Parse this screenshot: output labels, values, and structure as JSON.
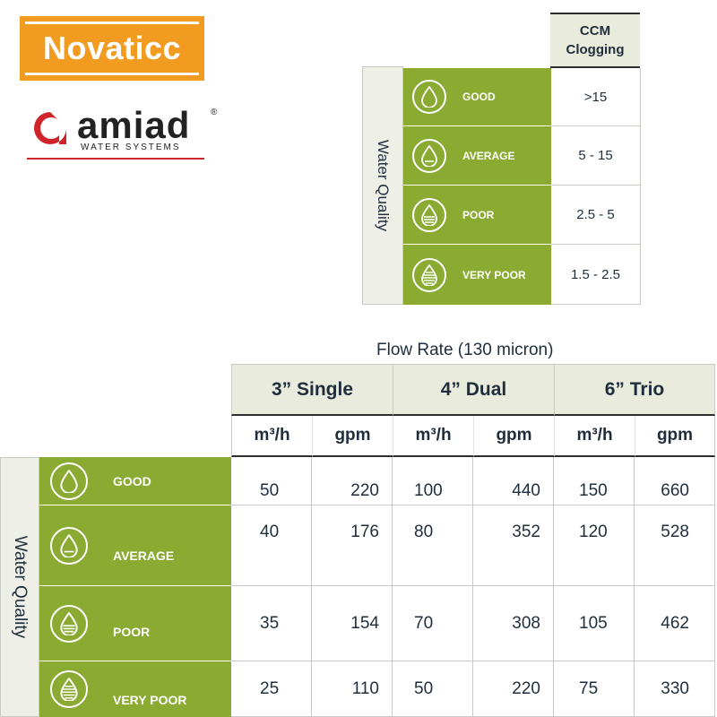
{
  "logos": {
    "novaticc": "Novaticc",
    "amiad": {
      "word": "amiad",
      "sub": "WATER SYSTEMS",
      "reg": "®"
    }
  },
  "ccm_table": {
    "side_label": "Water Quality",
    "header_line1": "CCM",
    "header_line2": "Clogging",
    "rows": [
      {
        "quality": "GOOD",
        "icon": "water-drop-icon",
        "value": ">15"
      },
      {
        "quality": "AVERAGE",
        "icon": "water-drop-icon",
        "value": "5 - 15"
      },
      {
        "quality": "POOR",
        "icon": "water-drop-icon",
        "value": "2.5 - 5"
      },
      {
        "quality": "VERY POOR",
        "icon": "water-drop-icon",
        "value": "1.5 - 2.5"
      }
    ]
  },
  "flow_table": {
    "caption": "Flow Rate (130 micron)",
    "side_label": "Water Quality",
    "groups": [
      "3” Single",
      "4” Dual",
      "6” Trio"
    ],
    "units": [
      "m³/h",
      "gpm",
      "m³/h",
      "gpm",
      "m³/h",
      "gpm"
    ],
    "rows": [
      {
        "quality": "GOOD",
        "values": [
          "50",
          "220",
          "100",
          "440",
          "150",
          "660"
        ]
      },
      {
        "quality": "AVERAGE",
        "values": [
          "40",
          "176",
          "80",
          "352",
          "120",
          "528"
        ]
      },
      {
        "quality": "POOR",
        "values": [
          "35",
          "154",
          "70",
          "308",
          "105",
          "462"
        ]
      },
      {
        "quality": "VERY POOR",
        "values": [
          "25",
          "110",
          "50",
          "220",
          "75",
          "330"
        ]
      }
    ]
  },
  "colors": {
    "quality_green": "#8aaa32",
    "header_bg": "#e9ecdc",
    "novaticc_orange": "#f29b21",
    "amiad_red": "#d0242b"
  }
}
